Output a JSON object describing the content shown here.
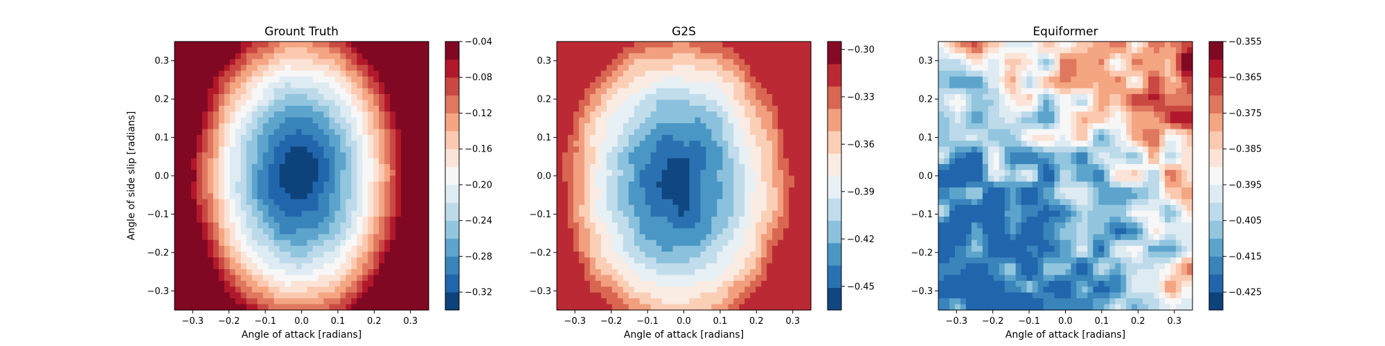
{
  "chart_data": [
    {
      "type": "heatmap",
      "title": "Grount Truth",
      "xlabel": "Angle of attack [radians]",
      "ylabel": "Angle of side slip [radians]",
      "xlim": [
        -0.35,
        0.35
      ],
      "ylim": [
        -0.35,
        0.35
      ],
      "x_ticks": [
        "−0.3",
        "−0.2",
        "−0.1",
        "0.0",
        "0.1",
        "0.2",
        "0.3"
      ],
      "y_ticks": [
        "−0.3",
        "−0.2",
        "−0.1",
        "0.0",
        "0.1",
        "0.2",
        "0.3"
      ],
      "colormap": "RdBu_r",
      "colorbar_range": [
        -0.34,
        -0.04
      ],
      "colorbar_ticks": [
        "−0.32",
        "−0.28",
        "−0.24",
        "−0.20",
        "−0.16",
        "−0.12",
        "−0.08",
        "−0.04"
      ],
      "colorbar_tick_values": [
        -0.32,
        -0.28,
        -0.24,
        -0.2,
        -0.16,
        -0.12,
        -0.08,
        -0.04
      ],
      "field": {
        "min": -0.335,
        "max": -0.04,
        "min_at": [
          -0.01,
          0.0
        ],
        "rx": 0.3,
        "ry": 0.42,
        "noise": 0.05
      }
    },
    {
      "type": "heatmap",
      "title": "G2S",
      "xlabel": "Angle of attack [radians]",
      "ylabel": "",
      "xlim": [
        -0.35,
        0.35
      ],
      "ylim": [
        -0.35,
        0.35
      ],
      "x_ticks": [
        "−0.3",
        "−0.2",
        "−0.1",
        "0.0",
        "0.1",
        "0.2",
        "0.3"
      ],
      "y_ticks": [
        "−0.3",
        "−0.2",
        "−0.1",
        "0.0",
        "0.1",
        "0.2",
        "0.3"
      ],
      "colormap": "RdBu_r",
      "colorbar_range": [
        -0.465,
        -0.295
      ],
      "colorbar_ticks": [
        "−0.45",
        "−0.42",
        "−0.39",
        "−0.36",
        "−0.33",
        "−0.30"
      ],
      "colorbar_tick_values": [
        -0.45,
        -0.42,
        -0.39,
        -0.36,
        -0.33,
        -0.3
      ],
      "field": {
        "min": -0.455,
        "max": -0.3,
        "min_at": [
          -0.02,
          -0.02
        ],
        "rx": 0.33,
        "ry": 0.42,
        "noise": 0.09
      }
    },
    {
      "type": "heatmap",
      "title": "Equiformer",
      "xlabel": "Angle of attack [radians]",
      "ylabel": "",
      "xlim": [
        -0.35,
        0.35
      ],
      "ylim": [
        -0.35,
        0.35
      ],
      "x_ticks": [
        "−0.3",
        "−0.2",
        "−0.1",
        "0.0",
        "0.1",
        "0.2",
        "0.3"
      ],
      "y_ticks": [
        "−0.3",
        "−0.2",
        "−0.1",
        "0.0",
        "0.1",
        "0.2",
        "0.3"
      ],
      "colormap": "RdBu_r",
      "colorbar_range": [
        -0.43,
        -0.355
      ],
      "colorbar_ticks": [
        "−0.425",
        "−0.415",
        "−0.405",
        "−0.395",
        "−0.385",
        "−0.375",
        "−0.365",
        "−0.355"
      ],
      "colorbar_tick_values": [
        -0.425,
        -0.415,
        -0.405,
        -0.395,
        -0.385,
        -0.375,
        -0.365,
        -0.355
      ],
      "field": {
        "min": -0.425,
        "max": -0.355,
        "min_at": [
          -0.25,
          -0.28
        ],
        "rx": 0.9,
        "ry": 0.9,
        "noise": 0.55
      }
    }
  ]
}
